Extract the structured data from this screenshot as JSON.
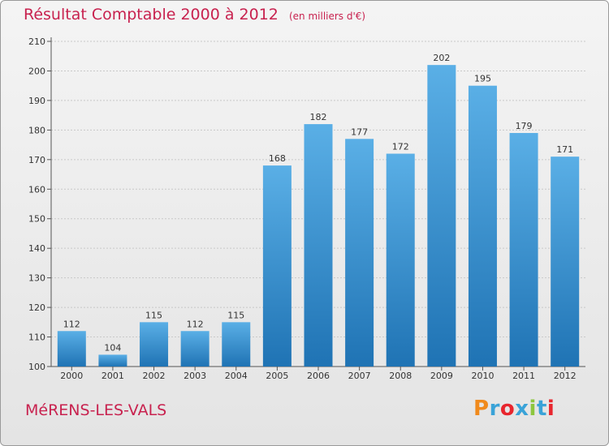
{
  "header": {
    "title": "Résultat Comptable 2000 à 2012",
    "unit": "(en milliers d'€)"
  },
  "footer": {
    "city": "MéRENS-LES-VALS",
    "brand": "Proxiti",
    "brand_colors": [
      "#f08a1c",
      "#3aa3d8",
      "#e8262e",
      "#3aa3d8",
      "#8dc63f",
      "#3aa3d8",
      "#e8262e"
    ]
  },
  "colors": {
    "title": "#c8224f",
    "bar_top": "#5aafe6",
    "bar_bottom": "#1f73b4",
    "background": "#ececec",
    "grid": "#c8c8c8"
  },
  "chart_data": {
    "type": "bar",
    "categories": [
      "2000",
      "2001",
      "2002",
      "2003",
      "2004",
      "2005",
      "2006",
      "2007",
      "2008",
      "2009",
      "2010",
      "2011",
      "2012"
    ],
    "values": [
      112,
      104,
      115,
      112,
      115,
      168,
      182,
      177,
      172,
      202,
      195,
      179,
      171
    ],
    "yticks": [
      100,
      110,
      120,
      130,
      140,
      150,
      160,
      170,
      180,
      190,
      200,
      210
    ],
    "ylim": [
      100,
      210
    ],
    "title": "Résultat Comptable 2000 à 2012",
    "xlabel": "",
    "ylabel": "",
    "grid": true,
    "data_labels": true
  }
}
